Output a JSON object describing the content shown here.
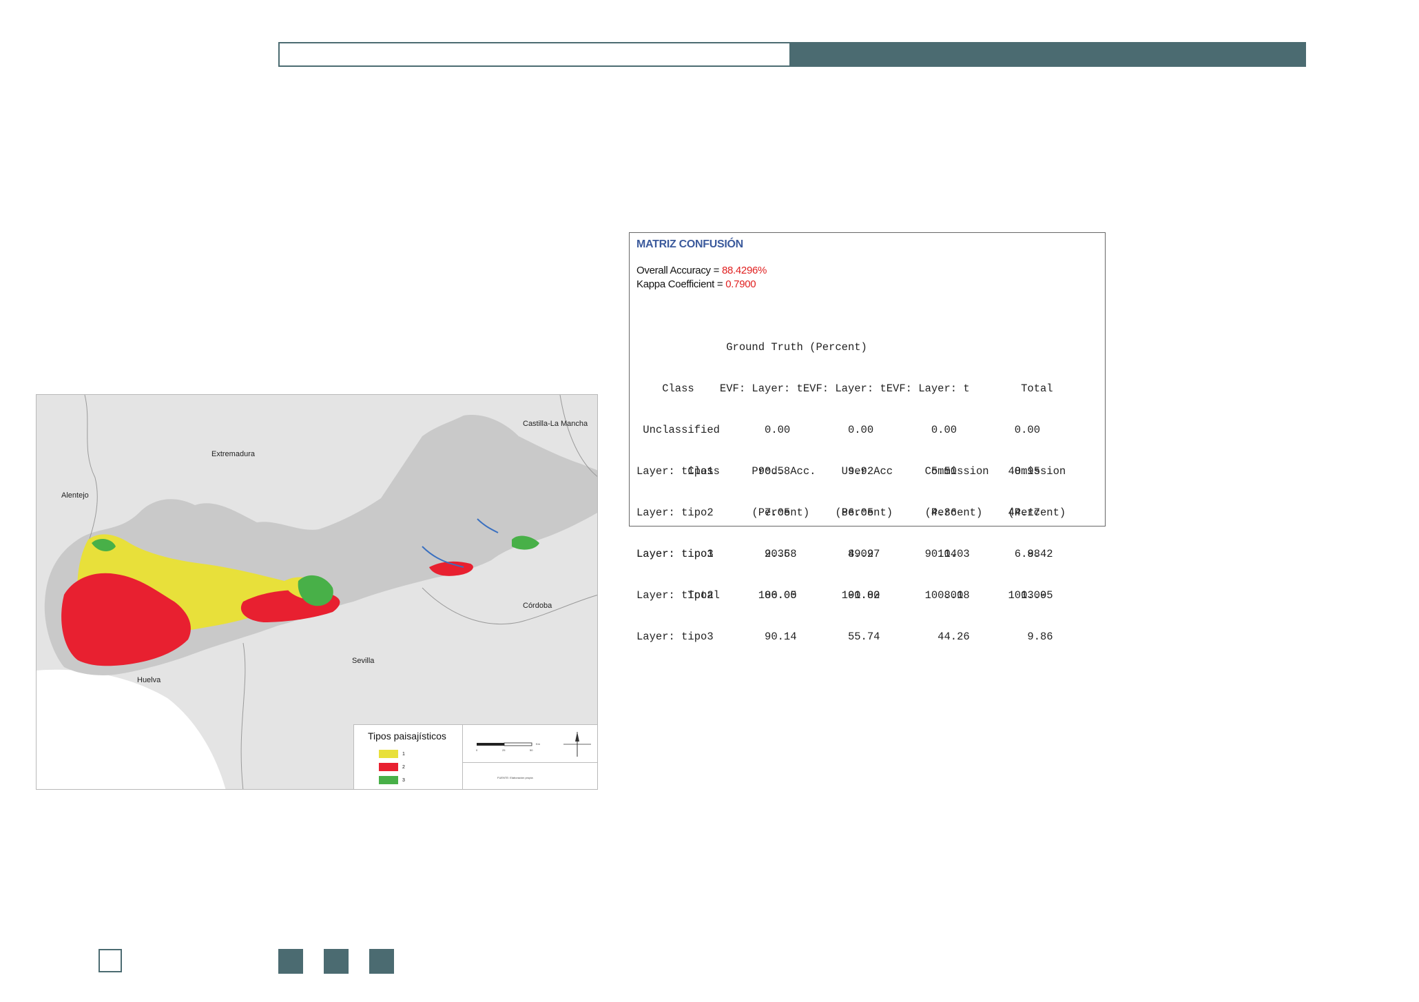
{
  "colors": {
    "accent": "#4b6b71",
    "tipo1": "#e8e03a",
    "tipo2": "#e82030",
    "tipo3": "#48b048",
    "title_blue": "#3b5a9c",
    "value_red": "#e02020"
  },
  "map": {
    "regions": [
      "Castilla-La Mancha",
      "Extremadura",
      "Alentejo",
      "Córdoba",
      "Sevilla",
      "Huelva"
    ],
    "legend": {
      "title": "Tipos paisajísticos",
      "items": [
        {
          "label": "1",
          "color": "#e8e03a"
        },
        {
          "label": "2",
          "color": "#e82030"
        },
        {
          "label": "3",
          "color": "#48b048"
        }
      ]
    },
    "scale_ticks": [
      "0",
      "25",
      "50",
      "Km"
    ],
    "source_text": "FUENTE: Elaboración propia"
  },
  "matrix": {
    "title": "MATRIZ CONFUSIÓN",
    "overall_label": "Overall Accuracy = ",
    "overall_value": "88.4296%",
    "kappa_label": "Kappa Coefficient = ",
    "kappa_value": "0.7900",
    "ground_truth_table": [
      "              Ground Truth (Percent)",
      "    Class    EVF: Layer: tEVF: Layer: tEVF: Layer: t        Total",
      " Unclassified       0.00         0.00         0.00         0.00",
      "Layer: tipo1       90.58         9.92         5.50        48.95",
      "Layer: tipo2        7.05        86.05         4.36        44.17",
      "Layer: tipo3        2.36         4.02        90.14         6.88",
      "        Total      100.00       100.00       100.00       100.00"
    ],
    "accuracy_table": [
      "        Class     Prod. Acc.    User Acc     Commission    Omission",
      "                  (Percent)    (Percent)     (Percent)    (Percent)",
      "Layer: tipo1        90.58        89.97         10.03         9.42",
      "Layer: tipo2        86.05        91.82          8.18        13.95",
      "Layer: tipo3        90.14        55.74         44.26         9.86"
    ]
  }
}
